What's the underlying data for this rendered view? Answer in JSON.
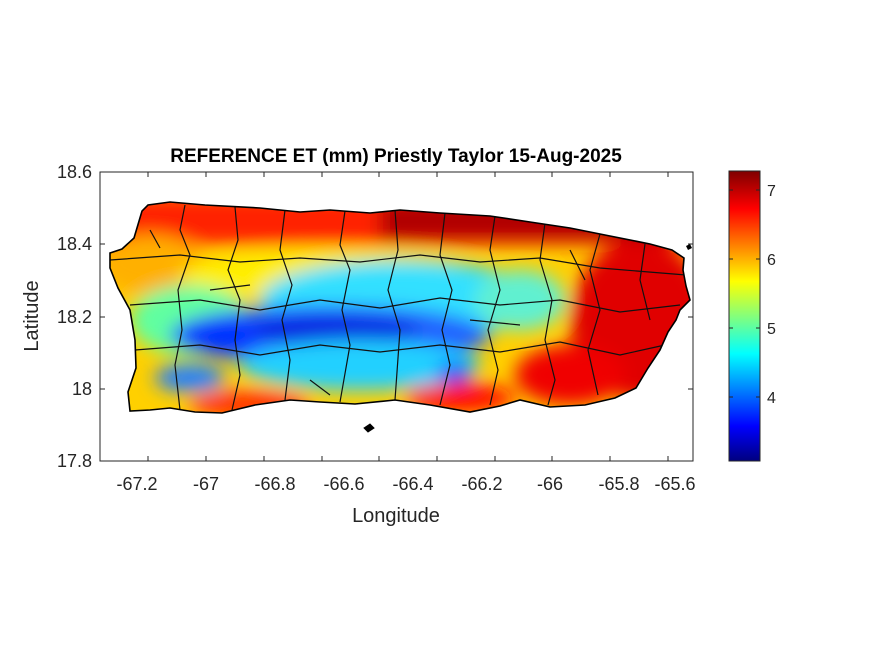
{
  "title": "REFERENCE ET (mm) Priestly Taylor 15-Aug-2025",
  "axes": {
    "xlabel": "Longitude",
    "ylabel": "Latitude",
    "xticks": [
      "-67.2",
      "-67",
      "-66.8",
      "-66.6",
      "-66.4",
      "-66.2",
      "-66",
      "-65.8",
      "-65.6"
    ],
    "yticks": [
      "18.6",
      "18.4",
      "18.2",
      "18",
      "17.8"
    ]
  },
  "colorbar": {
    "ticks": [
      "7",
      "6",
      "5",
      "4"
    ],
    "colormap": "jet",
    "colors": [
      "#00007f",
      "#0000ff",
      "#00ffff",
      "#ffff00",
      "#ff0000",
      "#7f0000"
    ]
  },
  "map": {
    "region": "Puerto Rico",
    "variable_shown": "reference evapotranspiration",
    "low_areas": "central mountains and south-central",
    "high_areas": "north coast and east"
  }
}
